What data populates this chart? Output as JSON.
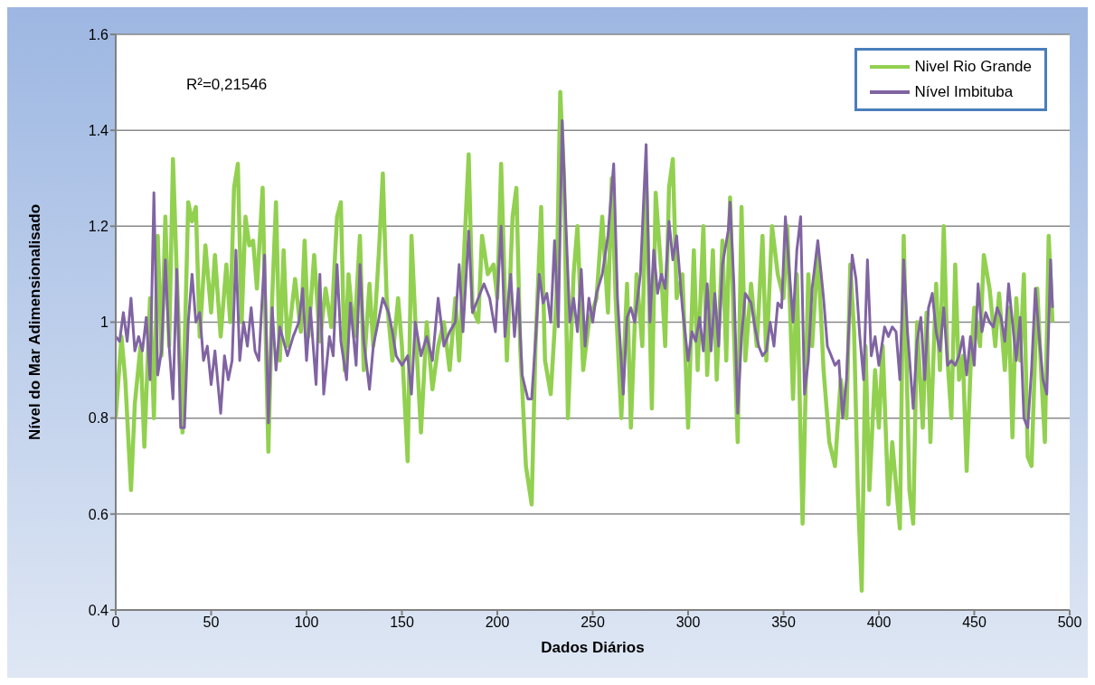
{
  "chart_data": {
    "type": "line",
    "xlabel": "Dados Diários",
    "ylabel": "Nível do Mar  Adimensionalisado",
    "annotations": [
      "R²=0,21546"
    ],
    "xlim": [
      0,
      500
    ],
    "xticks": [
      0,
      50,
      100,
      150,
      200,
      250,
      300,
      350,
      400,
      450,
      500
    ],
    "ylim": [
      0.4,
      1.6
    ],
    "yticks": [
      0.4,
      0.6,
      0.8,
      1,
      1.2,
      1.4,
      1.6
    ],
    "grid": "y",
    "legend": "top right",
    "marker": "none",
    "line_style": "solid",
    "series": [
      {
        "name": "Nivel Rio Grande",
        "color": "#92d050",
        "x": [
          0,
          3,
          5,
          8,
          10,
          13,
          15,
          18,
          20,
          22,
          24,
          26,
          28,
          30,
          32,
          35,
          38,
          40,
          42,
          44,
          47,
          50,
          52,
          55,
          58,
          60,
          62,
          64,
          66,
          68,
          70,
          72,
          74,
          77,
          79,
          80,
          82,
          84,
          86,
          88,
          90,
          94,
          97,
          99,
          101,
          104,
          107,
          110,
          113,
          116,
          118,
          120,
          122,
          125,
          128,
          130,
          133,
          135,
          138,
          140,
          142,
          145,
          148,
          150,
          153,
          155,
          158,
          160,
          163,
          166,
          169,
          172,
          175,
          178,
          180,
          183,
          185,
          187,
          190,
          192,
          195,
          198,
          200,
          202,
          205,
          208,
          210,
          212,
          215,
          218,
          220,
          223,
          225,
          228,
          231,
          233,
          235,
          237,
          240,
          242,
          245,
          248,
          252,
          255,
          258,
          260,
          262,
          265,
          268,
          270,
          273,
          276,
          278,
          281,
          283,
          286,
          288,
          290,
          292,
          294,
          297,
          300,
          303,
          305,
          308,
          310,
          313,
          315,
          318,
          320,
          322,
          324,
          326,
          328,
          330,
          333,
          336,
          339,
          341,
          344,
          347,
          350,
          352,
          355,
          357,
          360,
          363,
          365,
          368,
          371,
          374,
          377,
          380,
          383,
          385,
          387,
          389,
          391,
          393,
          395,
          398,
          400,
          402,
          405,
          407,
          409,
          411,
          413,
          416,
          418,
          420,
          423,
          425,
          427,
          430,
          432,
          434,
          436,
          438,
          440,
          442,
          444,
          446,
          448,
          450,
          453,
          455,
          458,
          461,
          463,
          466,
          468,
          470,
          472,
          474,
          476,
          478,
          480,
          483,
          485,
          487,
          489,
          491
        ],
        "values": [
          0.8,
          0.97,
          0.88,
          0.65,
          0.83,
          0.95,
          0.74,
          1.05,
          0.8,
          1.18,
          0.93,
          1.22,
          0.95,
          1.34,
          1.1,
          0.77,
          1.25,
          1.21,
          1.24,
          0.97,
          1.16,
          1.02,
          1.14,
          0.97,
          1.12,
          1.0,
          1.28,
          1.33,
          1.0,
          1.22,
          1.16,
          1.17,
          1.07,
          1.28,
          0.9,
          0.73,
          1.05,
          1.25,
          0.92,
          1.15,
          0.95,
          1.09,
          0.98,
          1.17,
          0.97,
          1.14,
          0.96,
          1.07,
          0.99,
          1.22,
          1.25,
          0.9,
          1.1,
          0.97,
          1.18,
          0.9,
          1.08,
          0.95,
          1.15,
          1.31,
          1.05,
          0.92,
          1.05,
          0.95,
          0.71,
          1.18,
          0.92,
          0.77,
          1.0,
          0.86,
          0.95,
          1.0,
          0.9,
          1.05,
          0.92,
          1.18,
          1.35,
          1.03,
          1.0,
          1.18,
          1.1,
          1.12,
          1.05,
          1.33,
          0.92,
          1.22,
          1.28,
          0.95,
          0.7,
          0.62,
          0.95,
          1.24,
          0.92,
          0.85,
          1.05,
          1.48,
          1.3,
          0.8,
          1.1,
          1.2,
          0.9,
          1.0,
          1.05,
          1.22,
          1.02,
          1.3,
          1.05,
          0.8,
          1.08,
          0.78,
          1.1,
          0.95,
          1.31,
          0.82,
          1.27,
          1.1,
          0.95,
          1.28,
          1.34,
          1.05,
          1.1,
          0.78,
          1.15,
          0.9,
          1.2,
          0.89,
          1.15,
          0.88,
          1.17,
          0.92,
          1.26,
          0.98,
          0.75,
          1.24,
          0.92,
          1.08,
          0.95,
          1.18,
          0.92,
          1.2,
          1.1,
          1.05,
          1.2,
          0.84,
          1.1,
          0.58,
          1.1,
          0.95,
          1.15,
          0.9,
          0.75,
          0.7,
          0.88,
          0.8,
          1.12,
          0.98,
          0.64,
          0.44,
          0.95,
          0.65,
          0.9,
          0.78,
          0.95,
          0.62,
          0.75,
          0.66,
          0.57,
          1.18,
          0.65,
          0.58,
          1.0,
          0.78,
          1.02,
          0.75,
          1.08,
          0.9,
          1.2,
          0.92,
          0.8,
          1.12,
          0.88,
          0.93,
          0.69,
          0.9,
          1.03,
          0.95,
          1.14,
          1.07,
          0.95,
          1.06,
          0.9,
          1.03,
          0.76,
          1.05,
          0.92,
          1.1,
          0.72,
          0.7,
          1.07,
          0.9,
          0.75,
          1.18,
          1.0
        ]
      },
      {
        "name": "Nível Imbituba",
        "color": "#8064a2",
        "x": [
          0,
          2,
          4,
          6,
          8,
          10,
          12,
          14,
          16,
          18,
          20,
          22,
          24,
          26,
          28,
          30,
          32,
          34,
          36,
          38,
          40,
          42,
          44,
          46,
          48,
          50,
          52,
          55,
          57,
          59,
          61,
          63,
          65,
          67,
          69,
          71,
          73,
          75,
          78,
          80,
          82,
          84,
          86,
          88,
          90,
          93,
          96,
          98,
          100,
          102,
          105,
          107,
          109,
          112,
          114,
          116,
          118,
          121,
          123,
          126,
          128,
          130,
          133,
          135,
          138,
          140,
          143,
          145,
          147,
          150,
          153,
          155,
          157,
          160,
          163,
          166,
          169,
          172,
          175,
          178,
          180,
          182,
          185,
          187,
          190,
          193,
          196,
          199,
          202,
          204,
          207,
          209,
          211,
          213,
          216,
          218,
          220,
          222,
          224,
          226,
          228,
          230,
          232,
          234,
          236,
          238,
          240,
          242,
          244,
          246,
          248,
          250,
          252,
          255,
          258,
          261,
          263,
          266,
          268,
          270,
          272,
          275,
          278,
          280,
          282,
          284,
          286,
          288,
          290,
          292,
          294,
          297,
          300,
          302,
          304,
          306,
          308,
          310,
          312,
          314,
          316,
          318,
          321,
          322,
          324,
          326,
          328,
          330,
          333,
          335,
          337,
          339,
          341,
          343,
          345,
          347,
          349,
          351,
          353,
          355,
          357,
          359,
          361,
          363,
          365,
          368,
          371,
          373,
          375,
          377,
          379,
          381,
          383,
          386,
          388,
          390,
          392,
          394,
          396,
          398,
          400,
          403,
          405,
          407,
          409,
          411,
          413,
          415,
          418,
          420,
          422,
          424,
          426,
          428,
          430,
          432,
          434,
          436,
          438,
          440,
          442,
          444,
          446,
          448,
          450,
          452,
          454,
          456,
          458,
          460,
          462,
          464,
          466,
          468,
          470,
          472,
          474,
          476,
          478,
          480,
          482,
          484,
          486,
          488,
          490,
          491
        ],
        "values": [
          0.97,
          0.96,
          1.02,
          0.96,
          1.05,
          0.94,
          0.97,
          0.94,
          1.01,
          0.88,
          1.27,
          0.89,
          0.94,
          1.13,
          0.95,
          0.84,
          1.11,
          0.78,
          0.78,
          1.0,
          1.1,
          1.0,
          1.02,
          0.92,
          0.95,
          0.87,
          0.94,
          0.81,
          0.93,
          0.88,
          0.92,
          1.15,
          0.92,
          1.0,
          0.95,
          1.03,
          0.94,
          0.92,
          1.14,
          0.79,
          1.03,
          0.9,
          0.99,
          0.96,
          0.93,
          0.97,
          1.0,
          1.07,
          0.92,
          1.03,
          0.87,
          1.1,
          0.85,
          0.97,
          0.93,
          1.12,
          0.96,
          0.88,
          1.04,
          0.91,
          1.12,
          0.96,
          0.86,
          0.95,
          1.01,
          1.05,
          1.02,
          0.98,
          0.93,
          0.91,
          0.93,
          0.85,
          1.0,
          0.93,
          0.97,
          0.92,
          1.05,
          0.95,
          0.98,
          1.0,
          1.12,
          0.98,
          1.19,
          1.02,
          1.05,
          1.08,
          1.05,
          0.98,
          1.2,
          0.97,
          1.1,
          0.97,
          1.07,
          0.89,
          0.84,
          0.84,
          0.96,
          1.1,
          1.04,
          1.06,
          1.0,
          1.17,
          0.99,
          1.42,
          1.2,
          1.0,
          1.05,
          0.98,
          1.11,
          0.95,
          1.05,
          1.0,
          1.06,
          1.1,
          1.18,
          1.33,
          1.05,
          0.85,
          1.01,
          1.03,
          1.0,
          1.1,
          1.37,
          1.0,
          1.15,
          1.06,
          1.1,
          1.07,
          1.21,
          1.13,
          1.18,
          1.03,
          0.92,
          0.98,
          0.96,
          1.01,
          0.94,
          1.08,
          0.94,
          1.06,
          0.95,
          1.12,
          1.19,
          1.25,
          1.08,
          0.81,
          0.97,
          1.06,
          1.04,
          0.99,
          0.95,
          0.93,
          0.94,
          1.0,
          0.95,
          1.04,
          1.03,
          1.22,
          1.11,
          1.0,
          1.15,
          1.22,
          0.85,
          0.92,
          1.07,
          1.17,
          1.05,
          0.95,
          0.93,
          0.91,
          0.92,
          0.8,
          0.88,
          1.14,
          1.09,
          0.97,
          0.88,
          1.13,
          0.93,
          0.97,
          0.91,
          0.99,
          0.97,
          0.99,
          0.98,
          0.88,
          1.13,
          0.98,
          0.82,
          0.96,
          1.01,
          0.88,
          1.03,
          1.06,
          0.98,
          0.94,
          1.03,
          0.91,
          0.92,
          0.91,
          0.93,
          0.97,
          0.89,
          0.97,
          0.91,
          1.08,
          0.98,
          1.02,
          1.0,
          0.99,
          1.03,
          1.01,
          0.96,
          1.08,
          1.0,
          0.92,
          1.01,
          0.8,
          0.78,
          0.9,
          1.07,
          0.97,
          0.88,
          0.85,
          1.13,
          1.03
        ]
      }
    ]
  }
}
